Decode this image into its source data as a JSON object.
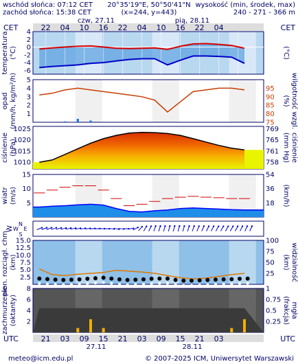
{
  "header": {
    "sunrise": "wschód słońca: 07:12 CET",
    "sunset": "zachód słońca: 15:38 CET",
    "coords": "20°35'19\"E, 50°50'41\"N",
    "grid": "(x=244, y=443)",
    "elevation_label": "wysokość (min, środek, max)",
    "elevation_values": "240 - 271 - 366 m"
  },
  "top_axis": {
    "tz_left": "CET",
    "tz_right": "CET",
    "date1": "czw, 27.11",
    "date2": "pią, 28.11",
    "hours": [
      "22",
      "04",
      "10",
      "16",
      "22",
      "04",
      "10",
      "16",
      "22",
      "04"
    ]
  },
  "bottom_axis": {
    "tz_left": "UTC",
    "tz_right": "UTC",
    "hours": [
      "21",
      "03",
      "09",
      "15",
      "21",
      "03",
      "09",
      "15",
      "21",
      "03"
    ],
    "date1": "27.11",
    "date2": "28.11"
  },
  "footer": {
    "email": "meteo@icm.edu.pl",
    "copyright": "© 2007-2025 ICM, Uniwersytet Warszawski"
  },
  "chart_data": [
    {
      "type": "line",
      "panel": "temperature",
      "ylabel_left": "temperatura",
      "unit_left": "(°C)",
      "unit_right": "(°C)",
      "ylim": [
        -7,
        4
      ],
      "yticks": [
        4,
        2,
        0,
        -2,
        -4,
        -6
      ],
      "x": [
        20,
        24,
        28,
        32,
        36,
        40,
        44,
        48,
        52,
        56,
        60,
        64,
        68,
        72,
        76,
        80,
        84
      ],
      "series": [
        {
          "role": "temperature",
          "color": "#d40000",
          "values": [
            -0.5,
            -0.2,
            0.0,
            0.2,
            0.3,
            0.0,
            -0.3,
            -0.4,
            -0.3,
            -0.2,
            -0.6,
            0.2,
            0.8,
            0.9,
            0.7,
            0.4,
            -0.3
          ]
        },
        {
          "role": "dew_point",
          "color": "#0000c8",
          "values": [
            -5.3,
            -5.0,
            -4.8,
            -4.6,
            -4.2,
            -4.0,
            -3.6,
            -3.2,
            -3.0,
            -3.0,
            -4.6,
            -3.4,
            -2.3,
            -2.3,
            -2.4,
            -2.6,
            -4.2
          ]
        }
      ]
    },
    {
      "type": "line",
      "panel": "precipitation",
      "ylabel_left": "opad",
      "unit_left": "(mm/h, kg/m²/h)",
      "ylabel_right": "wilgotność wzgl.",
      "unit_right": "(%)",
      "ylim": [
        0,
        5
      ],
      "yticks": [
        5,
        4,
        3,
        2,
        1
      ],
      "yticks_right": [
        95,
        90,
        85,
        80,
        75
      ],
      "ylim_right": [
        75,
        100
      ],
      "x": [
        20,
        24,
        28,
        32,
        36,
        40,
        44,
        48,
        52,
        56,
        60,
        64,
        68,
        72,
        76,
        80,
        84
      ],
      "series": [
        {
          "role": "humidity",
          "color": "#c83c00",
          "values": [
            91.0,
            92.0,
            94.0,
            95.0,
            94.0,
            93.0,
            92.0,
            91.0,
            90.0,
            88.0,
            81.0,
            87.0,
            93.0,
            94.0,
            95.0,
            95.0,
            94.0
          ]
        },
        {
          "role": "precipitation",
          "color": "#1070e0",
          "values": [
            0.0,
            0.0,
            0.1,
            0.4,
            0.2,
            0.0,
            0.0,
            0.0,
            0.0,
            0.0,
            0.0,
            0.0,
            0.0,
            0.0,
            0.0,
            0.0,
            0.0
          ]
        }
      ]
    },
    {
      "type": "area",
      "panel": "pressure",
      "ylabel_left": "ciśnienie",
      "unit_left": "(hPa)",
      "ylabel_right": "ciśnienie",
      "unit_right": "(mm Hg)",
      "ylim": [
        1007,
        1026
      ],
      "yticks": [
        1025,
        1020,
        1015,
        1010
      ],
      "yticks_right": [
        769,
        765,
        761,
        758
      ],
      "x": [
        20,
        24,
        28,
        32,
        36,
        40,
        44,
        48,
        52,
        56,
        60,
        64,
        68,
        72,
        76,
        80,
        84
      ],
      "series": [
        {
          "role": "pressure",
          "color": "#000000",
          "values": [
            1010.0,
            1011.0,
            1013.5,
            1016.0,
            1018.5,
            1020.5,
            1022.0,
            1023.0,
            1023.3,
            1023.2,
            1022.8,
            1022.0,
            1020.5,
            1019.0,
            1017.5,
            1016.3,
            1015.5
          ]
        }
      ]
    },
    {
      "type": "line",
      "panel": "wind",
      "ylabel_left": "wiatr",
      "unit_left": "(m/s)",
      "unit_right": "(km/h)",
      "ylim": [
        0,
        15
      ],
      "yticks": [
        15,
        10,
        5
      ],
      "yticks_right": [
        54,
        36,
        18
      ],
      "x": [
        20,
        24,
        28,
        32,
        36,
        40,
        44,
        48,
        52,
        56,
        60,
        64,
        68,
        72,
        76,
        80,
        84
      ],
      "series": [
        {
          "role": "wind_speed",
          "color": "#0000ff",
          "values": [
            3.5,
            3.8,
            4.0,
            4.3,
            4.5,
            4.2,
            3.0,
            2.0,
            1.8,
            2.2,
            2.5,
            3.0,
            3.2,
            3.0,
            2.8,
            2.6,
            2.5
          ]
        },
        {
          "role": "gusts",
          "color": "#d40000",
          "values": [
            8.5,
            9.5,
            10.5,
            11.0,
            11.0,
            9.5,
            6.5,
            4.0,
            4.5,
            5.5,
            6.5,
            7.0,
            7.3,
            7.0,
            6.8,
            6.5,
            6.5
          ]
        }
      ]
    },
    {
      "type": "line",
      "panel": "wind_direction",
      "ylabel_left": "W",
      "compass": [
        "N",
        "E",
        "S",
        "W"
      ],
      "x": [
        20,
        24,
        28,
        32,
        36,
        40,
        44,
        48,
        52,
        56,
        60,
        64,
        68,
        72,
        76,
        80,
        84
      ],
      "series": [
        {
          "role": "wind_direction_deg",
          "color": "#0000c8",
          "values": [
            250,
            250,
            255,
            260,
            265,
            270,
            280,
            270,
            215,
            200,
            195,
            195,
            200,
            205,
            210,
            210,
            205
          ]
        }
      ]
    },
    {
      "type": "scatter",
      "panel": "visibility",
      "ylabel_left": "pion. rozciągł. chm.",
      "unit_left": "(km)",
      "ylabel_right": "widzialność",
      "unit_right": "(km)",
      "ylim": [
        0,
        15
      ],
      "yticks": [
        15.0,
        12.5,
        10.0,
        7.5,
        5.0,
        2.5
      ],
      "yticks_right": [
        100,
        75,
        50,
        25
      ],
      "ylim_right": [
        0,
        100
      ],
      "x": [
        20,
        24,
        28,
        32,
        36,
        40,
        44,
        48,
        52,
        56,
        60,
        64,
        68,
        72,
        76,
        80,
        84
      ],
      "series": [
        {
          "role": "visibility",
          "color": "#e07800",
          "values": [
            35,
            22,
            20,
            23,
            25,
            27,
            32,
            30,
            28,
            25,
            20,
            15,
            12,
            14,
            18,
            22,
            25
          ]
        },
        {
          "role": "cloud_extent_km",
          "color": "#000000",
          "values": [
            1.5,
            1.2,
            1.0,
            1.2,
            1.5,
            1.8,
            1.3,
            1.0,
            1.2,
            1.5,
            1.5,
            0.8,
            0.8,
            1.0,
            1.2,
            1.3,
            1.5
          ]
        }
      ]
    },
    {
      "type": "area",
      "panel": "clouds",
      "ylabel_left": "zachmurzenie",
      "unit_left": "(oktanty)",
      "ylabel_right": "mgła",
      "unit_right": "(frakcja)",
      "ylim": [
        0,
        8
      ],
      "yticks": [
        8,
        6,
        4,
        2
      ],
      "yticks_right": [
        1,
        0.75,
        0.5,
        0.25
      ],
      "x": [
        20,
        24,
        28,
        32,
        36,
        40,
        44,
        48,
        52,
        56,
        60,
        64,
        68,
        72,
        76,
        80,
        84
      ],
      "series": [
        {
          "role": "cloud_cover_total",
          "color": "#333333",
          "values": [
            8,
            8,
            8,
            8,
            8,
            8,
            8,
            8,
            8,
            8,
            8,
            8,
            8,
            8,
            8,
            8,
            8
          ]
        },
        {
          "role": "fog_fraction",
          "color": "#f0b000",
          "values": [
            0.0,
            0.0,
            0.0,
            0.1,
            0.3,
            0.1,
            0.0,
            0.0,
            0.0,
            0.0,
            0.0,
            0.0,
            0.0,
            0.0,
            0.0,
            0.1,
            0.3
          ]
        }
      ]
    }
  ]
}
